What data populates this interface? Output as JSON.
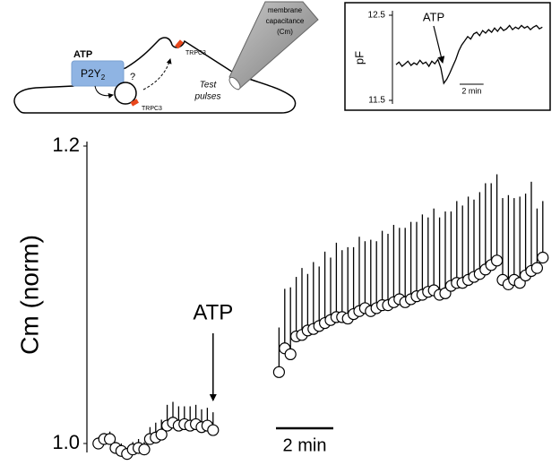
{
  "schematic": {
    "agonist": "ATP",
    "receptor": "P2Y",
    "receptor_subscript": "2",
    "channel_top": "TRPC3",
    "channel_bottom": "TRPC3",
    "question": "?",
    "pipette_label": [
      "membrane",
      "capacitance",
      "(Cm)"
    ],
    "pulses_label": [
      "Test",
      "pulses"
    ]
  },
  "chart_data": [
    {
      "type": "scatter",
      "y_label": "Cm (norm)",
      "color": "#000000",
      "marker_face": "#ffffff",
      "ylim": [
        1.0,
        1.2
      ],
      "yticks": [
        {
          "value": 1,
          "label": "1.0"
        },
        1.2
      ],
      "xlim": [
        -0.4,
        15.85
      ],
      "annotation": "ATP",
      "annotation_x": 4.0,
      "scale_bar": {
        "value": 2,
        "label": "2 min"
      },
      "x": [
        0,
        0.2,
        0.4,
        0.6,
        0.8,
        1,
        1.2,
        1.4,
        1.6,
        1.8,
        2,
        2.2,
        2.4,
        2.6,
        2.8,
        3,
        3.2,
        3.4,
        3.6,
        3.8,
        4,
        6.3,
        6.5,
        6.7,
        6.9,
        7.1,
        7.3,
        7.5,
        7.7,
        7.9,
        8.1,
        8.3,
        8.5,
        8.7,
        8.9,
        9.1,
        9.3,
        9.5,
        9.7,
        9.9,
        10.1,
        10.3,
        10.5,
        10.7,
        10.9,
        11.1,
        11.3,
        11.5,
        11.7,
        11.9,
        12.1,
        12.3,
        12.5,
        12.7,
        12.9,
        13.1,
        13.3,
        13.5,
        13.7,
        13.9,
        14.1,
        14.3,
        14.5,
        14.7,
        14.9,
        15.1,
        15.3,
        15.5
      ],
      "values": [
        1.0,
        1.003,
        1.003,
        0.997,
        0.995,
        0.993,
        0.996,
        0.997,
        0.996,
        1.003,
        1.004,
        1.006,
        1.012,
        1.014,
        1.012,
        1.013,
        1.012,
        1.013,
        1.011,
        1.012,
        1.009,
        1.048,
        1.064,
        1.06,
        1.072,
        1.073,
        1.076,
        1.077,
        1.079,
        1.081,
        1.083,
        1.085,
        1.085,
        1.084,
        1.087,
        1.089,
        1.091,
        1.089,
        1.091,
        1.093,
        1.093,
        1.095,
        1.097,
        1.095,
        1.097,
        1.099,
        1.1,
        1.102,
        1.103,
        1.1,
        1.101,
        1.106,
        1.108,
        1.108,
        1.11,
        1.112,
        1.114,
        1.117,
        1.12,
        1.123,
        1.11,
        1.107,
        1.11,
        1.108,
        1.113,
        1.116,
        1.118,
        1.125
      ],
      "errors": [
        0.004,
        0.004,
        0.005,
        0.004,
        0.005,
        0.004,
        0.005,
        0.006,
        0.005,
        0.008,
        0.01,
        0.01,
        0.014,
        0.014,
        0.013,
        0.012,
        0.013,
        0.013,
        0.012,
        0.012,
        0.012,
        0.03,
        0.04,
        0.045,
        0.04,
        0.045,
        0.038,
        0.045,
        0.04,
        0.048,
        0.042,
        0.05,
        0.045,
        0.048,
        0.045,
        0.05,
        0.045,
        0.048,
        0.045,
        0.05,
        0.048,
        0.052,
        0.048,
        0.05,
        0.052,
        0.05,
        0.054,
        0.05,
        0.055,
        0.052,
        0.055,
        0.05,
        0.055,
        0.052,
        0.056,
        0.052,
        0.055,
        0.058,
        0.055,
        0.058,
        0.055,
        0.06,
        0.055,
        0.058,
        0.055,
        0.06,
        0.04,
        0.038
      ]
    },
    {
      "type": "line",
      "y_label": "pF",
      "color": "#000000",
      "ylim": [
        11.5,
        12.5
      ],
      "yticks": [
        11.5,
        12.5
      ],
      "xlim": [
        -0.3,
        12.6
      ],
      "annotation": "ATP",
      "annotation_x": 3.9,
      "scale_bar": {
        "value": 2,
        "label": "2 min"
      },
      "x": [
        0,
        0.25,
        0.5,
        0.75,
        1,
        1.25,
        1.5,
        1.75,
        2,
        2.25,
        2.5,
        2.75,
        3,
        3.25,
        3.5,
        3.75,
        4,
        4.25,
        4.5,
        4.75,
        5,
        5.25,
        5.5,
        5.75,
        6,
        6.25,
        6.5,
        6.75,
        7,
        7.25,
        7.5,
        7.75,
        8,
        8.25,
        8.5,
        8.75,
        9,
        9.25,
        9.5,
        9.75,
        10,
        10.25,
        10.5,
        10.75,
        11,
        11.25,
        11.5,
        11.75,
        12,
        12.25
      ],
      "values": [
        11.92,
        11.95,
        11.9,
        11.93,
        11.96,
        11.91,
        11.94,
        11.92,
        11.97,
        11.93,
        11.95,
        11.9,
        11.96,
        11.93,
        11.98,
        11.88,
        11.7,
        11.75,
        11.82,
        11.9,
        11.98,
        12.08,
        12.15,
        12.2,
        12.25,
        12.22,
        12.28,
        12.3,
        12.26,
        12.32,
        12.29,
        12.33,
        12.3,
        12.35,
        12.31,
        12.36,
        12.32,
        12.34,
        12.38,
        12.33,
        12.36,
        12.34,
        12.38,
        12.35,
        12.37,
        12.33,
        12.36,
        12.38,
        12.34,
        12.36
      ]
    }
  ]
}
